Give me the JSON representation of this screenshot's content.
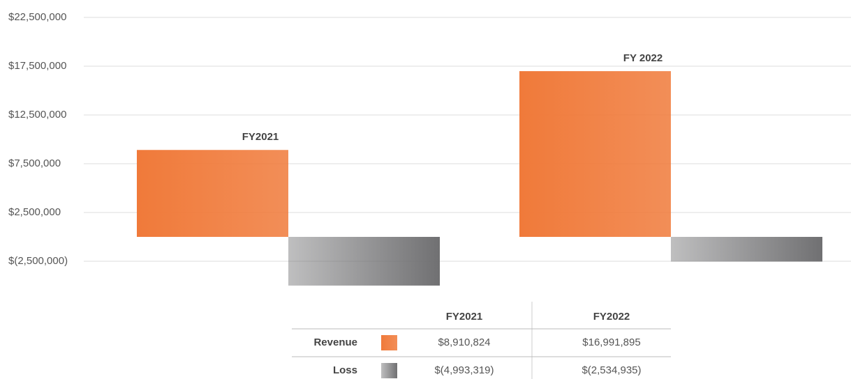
{
  "chart_data": {
    "type": "bar",
    "categories": [
      "FY2021",
      "FY 2022"
    ],
    "series": [
      {
        "name": "Revenue",
        "color": "#f07a3a",
        "values": [
          8910824,
          16991895
        ],
        "value_labels": [
          "$8,910,824",
          "$16,991,895"
        ]
      },
      {
        "name": "Loss",
        "color": "#707072",
        "values": [
          -4993319,
          -2534935
        ],
        "value_labels": [
          "$(4,993,319)",
          "$(2,534,935)"
        ]
      }
    ],
    "ylim": [
      -5000000,
      22500000
    ],
    "yticks": [
      {
        "value": -2500000,
        "label": "$(2,500,000)"
      },
      {
        "value": 2500000,
        "label": "$2,500,000"
      },
      {
        "value": 7500000,
        "label": "$7,500,000"
      },
      {
        "value": 12500000,
        "label": "$12,500,000"
      },
      {
        "value": 17500000,
        "label": "$17,500,000"
      },
      {
        "value": 22500000,
        "label": "$22,500,000"
      }
    ],
    "grid": true
  },
  "table": {
    "columns": [
      "FY2021",
      "FY2022"
    ]
  }
}
